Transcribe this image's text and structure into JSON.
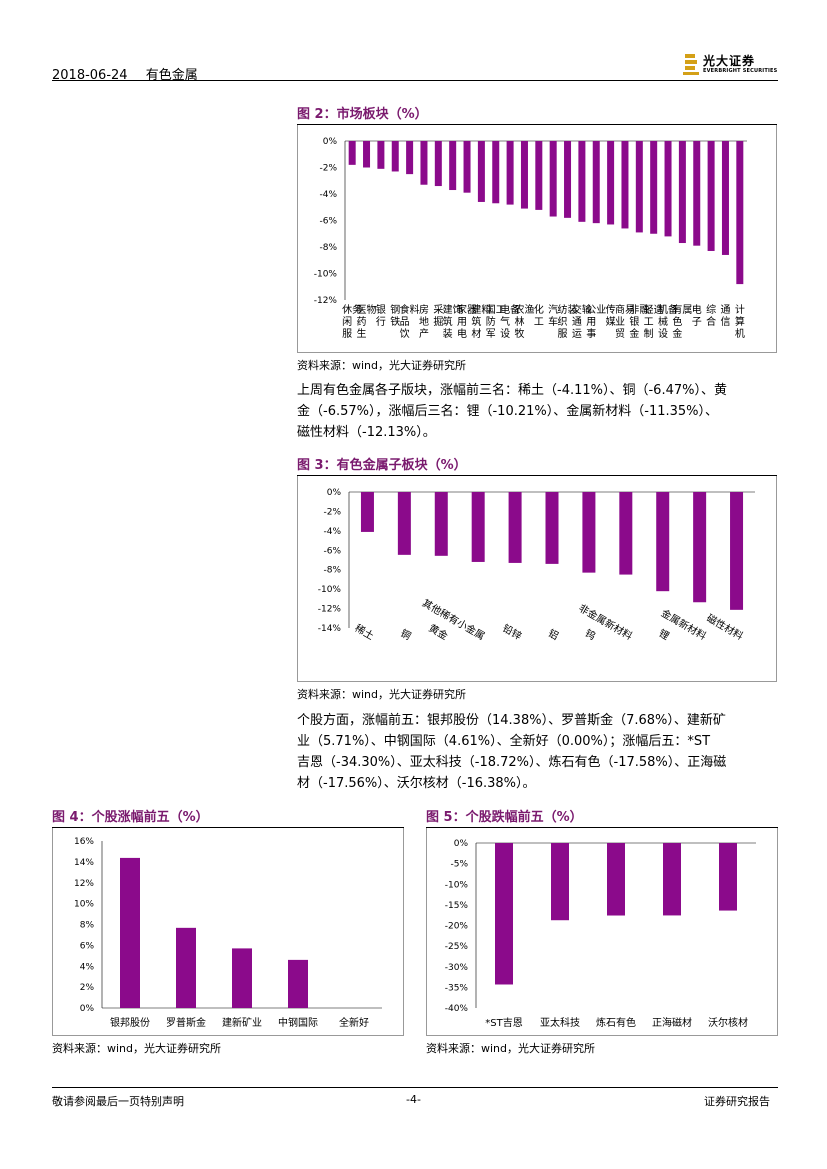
{
  "header": {
    "date": "2018-06-24",
    "sector": "有色金属",
    "logo_text": "光大证券",
    "logo_sub": "EVERBRIGHT SECURITIES"
  },
  "fig2": {
    "title": "图 2：市场板块（%）",
    "source": "资料来源：wind，光大证券研究所"
  },
  "para1": [
    "上周有色金属各子版块，涨幅前三名：稀土（-4.11%）、铜（-6.47%）、黄",
    "金（-6.57%），涨幅后三名：锂（-10.21%）、金属新材料（-11.35%）、",
    "磁性材料（-12.13%）。"
  ],
  "fig3": {
    "title": "图 3：有色金属子板块（%）",
    "source": "资料来源：wind，光大证券研究所"
  },
  "para2": [
    "个股方面，涨幅前五：银邦股份（14.38%）、罗普斯金（7.68%）、建新矿",
    "业（5.71%）、中钢国际（4.61%）、全新好（0.00%）；涨幅后五：*ST",
    "吉恩（-34.30%）、亚太科技（-18.72%）、炼石有色（-17.58%）、正海磁",
    "材（-17.56%）、沃尔核材（-16.38%）。"
  ],
  "fig4": {
    "title": "图 4：个股涨幅前五（%）",
    "source": "资料来源：wind，光大证券研究所"
  },
  "fig5": {
    "title": "图 5：个股跌幅前五（%）",
    "source": "资料来源：wind，光大证券研究所"
  },
  "footer": {
    "left": "敬请参阅最后一页特别声明",
    "center": "-4-",
    "right": "证券研究报告"
  },
  "colors": {
    "bar": "#8b0a8b",
    "title": "#7a1a6e"
  },
  "chart_data": [
    {
      "id": "fig2",
      "type": "bar",
      "categories": [
        "休闲服务",
        "医药生物",
        "银行",
        "钢铁",
        "食品饮料",
        "房地产",
        "采掘",
        "建筑装饰",
        "家用电器",
        "建筑材料",
        "国防军工",
        "电气设备",
        "农林牧渔",
        "化工",
        "汽车",
        "纺织服装",
        "交通运输",
        "公用事业",
        "传媒",
        "商业贸易",
        "非银金融",
        "轻工制造",
        "机械设备",
        "有色金属",
        "电子",
        "综合",
        "通信",
        "计算机"
      ],
      "category_labels": [
        "休闲服务",
        "医药生物",
        "银行",
        "钢铁",
        "食品饮料",
        "房地产",
        "采掘",
        "建筑装饰",
        "家用电器",
        "建筑材料",
        "国防军工",
        "电气设备",
        "农林牧渔",
        "化工",
        "汽车",
        "纺织服装",
        "交通运输",
        "公用事业",
        "传媒",
        "商业贸易",
        "非银金融",
        "轻工制造",
        "机械设备",
        "有色金属",
        "电子",
        "综合",
        "通信",
        "计算机"
      ],
      "values": [
        -1.8,
        -2.0,
        -2.1,
        -2.3,
        -2.5,
        -3.3,
        -3.4,
        -3.7,
        -3.9,
        -4.6,
        -4.7,
        -4.8,
        -5.1,
        -5.2,
        -5.7,
        -5.8,
        -6.1,
        -6.2,
        -6.3,
        -6.6,
        -6.9,
        -7.0,
        -7.2,
        -7.7,
        -7.9,
        -8.3,
        -8.6,
        -10.8
      ],
      "ylim": [
        -12,
        0
      ],
      "yticks": [
        "0%",
        "-2%",
        "-4%",
        "-6%",
        "-8%",
        "-10%",
        "-12%"
      ]
    },
    {
      "id": "fig3",
      "type": "bar",
      "categories": [
        "稀土",
        "铜",
        "黄金",
        "其他稀有小金属",
        "铅锌",
        "铝",
        "钨",
        "非金属新材料",
        "锂",
        "金属新材料",
        "磁性材料"
      ],
      "values": [
        -4.11,
        -6.47,
        -6.57,
        -7.2,
        -7.3,
        -7.4,
        -8.3,
        -8.5,
        -10.21,
        -11.35,
        -12.13
      ],
      "ylim": [
        -14,
        0
      ],
      "yticks": [
        "0%",
        "-2%",
        "-4%",
        "-6%",
        "-8%",
        "-10%",
        "-12%",
        "-14%"
      ]
    },
    {
      "id": "fig4",
      "type": "bar",
      "categories": [
        "银邦股份",
        "罗普斯金",
        "建新矿业",
        "中钢国际",
        "全新好"
      ],
      "values": [
        14.38,
        7.68,
        5.71,
        4.61,
        0.0
      ],
      "ylim": [
        0,
        16
      ],
      "yticks": [
        "16%",
        "14%",
        "12%",
        "10%",
        "8%",
        "6%",
        "4%",
        "2%",
        "0%"
      ]
    },
    {
      "id": "fig5",
      "type": "bar",
      "categories": [
        "*ST吉恩",
        "亚太科技",
        "炼石有色",
        "正海磁材",
        "沃尔核材"
      ],
      "values": [
        -34.3,
        -18.72,
        -17.58,
        -17.56,
        -16.38
      ],
      "ylim": [
        -40,
        0
      ],
      "yticks": [
        "0%",
        "-5%",
        "-10%",
        "-15%",
        "-20%",
        "-25%",
        "-30%",
        "-35%",
        "-40%"
      ]
    }
  ]
}
